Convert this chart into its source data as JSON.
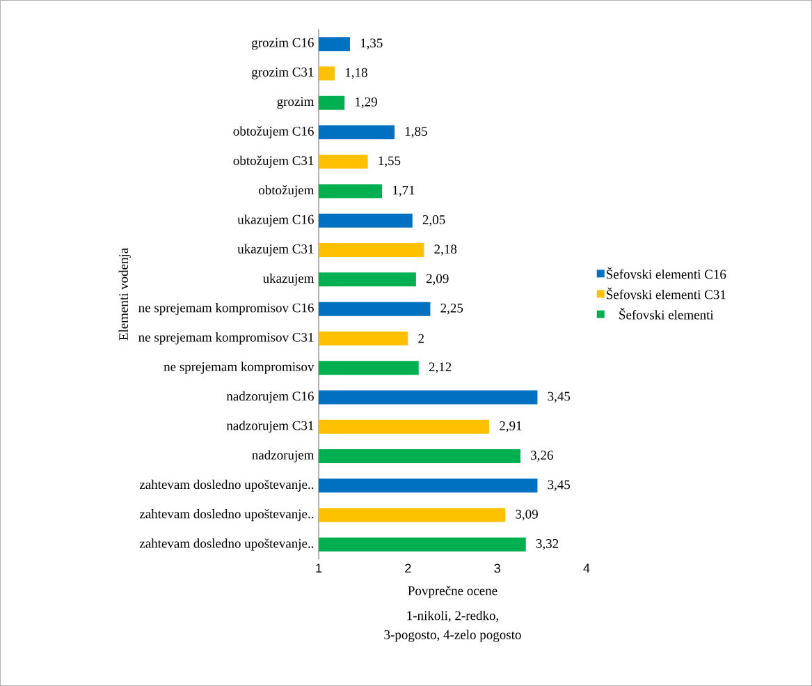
{
  "chart_data": {
    "type": "bar",
    "orientation": "horizontal",
    "xlabel": "Povprečne ocene",
    "ylabel": "Elementi vodenja",
    "annotations": [
      "1-nikoli, 2-redko,",
      "3-pogosto, 4-zelo pogosto"
    ],
    "categories": [
      "grozim C16",
      "grozim C31",
      "grozim",
      "obtožujem C16",
      "obtožujem C31",
      "obtožujem",
      "ukazujem C16",
      "ukazujem C31",
      "ukazujem",
      "ne sprejemam kompromisov C16",
      "ne sprejemam kompromisov C31",
      "ne sprejemam kompromisov",
      "nadzorujem C16",
      "nadzorujem C31",
      "nadzorujem",
      "zahtevam dosledno upoštevanje..",
      "zahtevam dosledno upoštevanje..",
      "zahtevam dosledno upoštevanje.."
    ],
    "series": [
      {
        "name": "Šefovski elementi C16",
        "color": "#0070c0",
        "values": [
          1.35,
          null,
          null,
          1.85,
          null,
          null,
          2.05,
          null,
          null,
          2.25,
          null,
          null,
          3.45,
          null,
          null,
          3.45,
          null,
          null
        ],
        "value_labels": [
          "1,35",
          null,
          null,
          "1,85",
          null,
          null,
          "2,05",
          null,
          null,
          "2,25",
          null,
          null,
          "3,45",
          null,
          null,
          "3,45",
          null,
          null
        ]
      },
      {
        "name": "Šefovski elementi C31",
        "color": "#ffc000",
        "values": [
          null,
          1.18,
          null,
          null,
          1.55,
          null,
          null,
          2.18,
          null,
          null,
          2,
          null,
          null,
          2.91,
          null,
          null,
          3.09,
          null
        ],
        "value_labels": [
          null,
          "1,18",
          null,
          null,
          "1,55",
          null,
          null,
          "2,18",
          null,
          null,
          "2",
          null,
          null,
          "2,91",
          null,
          null,
          "3,09",
          null
        ]
      },
      {
        "name": "Šefovski elementi",
        "color": "#00b050",
        "values": [
          null,
          null,
          1.29,
          null,
          null,
          1.71,
          null,
          null,
          2.09,
          null,
          null,
          2.12,
          null,
          null,
          3.26,
          null,
          null,
          3.32
        ],
        "value_labels": [
          null,
          null,
          "1,29",
          null,
          null,
          "1,71",
          null,
          null,
          "2,09",
          null,
          null,
          "2,12",
          null,
          null,
          "3,26",
          null,
          null,
          "3,32"
        ]
      }
    ],
    "xlim": [
      1,
      4
    ],
    "xticks": [
      1,
      2,
      3,
      4
    ],
    "grid": false,
    "legend": "right"
  }
}
